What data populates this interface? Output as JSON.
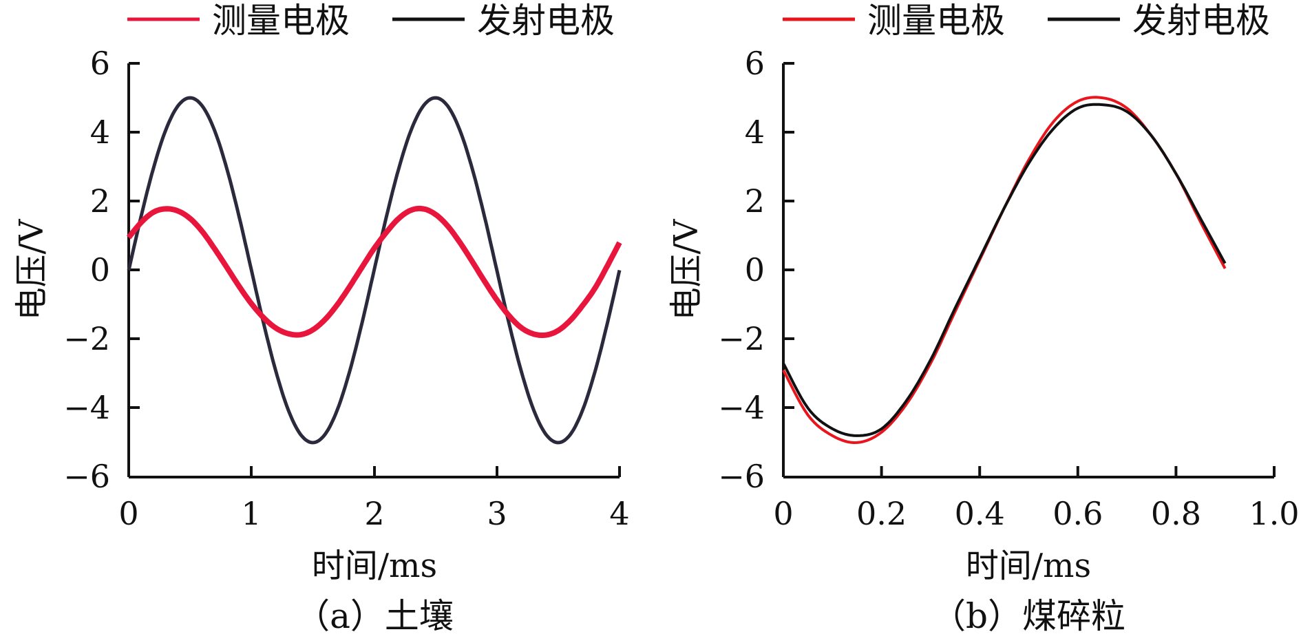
{
  "chart_data": [
    {
      "type": "line",
      "caption": "（a）土壤",
      "xlabel": "时间/ms",
      "ylabel": "电压/V",
      "xlim": [
        0,
        4
      ],
      "ylim": [
        -6,
        6
      ],
      "x_ticks": [
        "0",
        "1",
        "2",
        "3",
        "4"
      ],
      "y_ticks": [
        "6",
        "4",
        "2",
        "0",
        "−2",
        "−4",
        "−6"
      ],
      "legend": "top",
      "series": [
        {
          "name": "测量电极",
          "color": "#e8163c",
          "x": [
            0,
            0.1,
            0.2,
            0.3,
            0.4,
            0.5,
            0.6,
            0.7,
            0.8,
            0.9,
            1.0,
            1.1,
            1.2,
            1.3,
            1.4,
            1.5,
            1.6,
            1.7,
            1.8,
            1.9,
            2.0,
            2.1,
            2.2,
            2.3,
            2.4,
            2.5,
            2.6,
            2.7,
            2.8,
            2.9,
            3.0,
            3.1,
            3.2,
            3.3,
            3.4,
            3.5,
            3.6,
            3.7,
            3.8,
            3.9,
            4.0
          ],
          "y": [
            0.95,
            1.38,
            1.68,
            1.78,
            1.72,
            1.5,
            1.12,
            0.62,
            0.08,
            -0.47,
            -0.97,
            -1.38,
            -1.68,
            -1.84,
            -1.87,
            -1.73,
            -1.43,
            -1.0,
            -0.48,
            0.08,
            0.63,
            1.1,
            1.5,
            1.74,
            1.78,
            1.62,
            1.28,
            0.8,
            0.25,
            -0.32,
            -0.86,
            -1.32,
            -1.67,
            -1.85,
            -1.88,
            -1.75,
            -1.45,
            -1.02,
            -0.52,
            0.12,
            0.8
          ]
        },
        {
          "name": "发射电极",
          "color": "#2a2a3c",
          "x": [
            0,
            0.1,
            0.2,
            0.3,
            0.4,
            0.5,
            0.6,
            0.7,
            0.8,
            0.9,
            1.0,
            1.1,
            1.2,
            1.3,
            1.4,
            1.5,
            1.6,
            1.7,
            1.8,
            1.9,
            2.0,
            2.1,
            2.2,
            2.3,
            2.4,
            2.5,
            2.6,
            2.7,
            2.8,
            2.9,
            3.0,
            3.1,
            3.2,
            3.3,
            3.4,
            3.5,
            3.6,
            3.7,
            3.8,
            3.9,
            4.0
          ],
          "y": [
            0,
            1.55,
            2.94,
            4.05,
            4.76,
            5.0,
            4.76,
            4.05,
            2.94,
            1.55,
            0,
            -1.55,
            -2.94,
            -4.05,
            -4.76,
            -5.0,
            -4.76,
            -4.05,
            -2.94,
            -1.55,
            0,
            1.55,
            2.94,
            4.05,
            4.76,
            5.0,
            4.76,
            4.05,
            2.94,
            1.55,
            0,
            -1.55,
            -2.94,
            -4.05,
            -4.76,
            -5.0,
            -4.76,
            -4.05,
            -2.94,
            -1.55,
            0
          ]
        }
      ]
    },
    {
      "type": "line",
      "caption": "（b）煤碎粒",
      "xlabel": "时间/ms",
      "ylabel": "电压/V",
      "xlim": [
        0,
        1.0
      ],
      "ylim": [
        -6,
        6
      ],
      "x_ticks": [
        "0",
        "0.2",
        "0.4",
        "0.6",
        "0.8",
        "1.0"
      ],
      "y_ticks": [
        "6",
        "4",
        "2",
        "0",
        "−2",
        "−4",
        "−6"
      ],
      "legend": "top",
      "series": [
        {
          "name": "测量电极",
          "color": "#e8161c",
          "x": [
            0,
            0.05,
            0.1,
            0.15,
            0.2,
            0.25,
            0.3,
            0.35,
            0.4,
            0.45,
            0.5,
            0.55,
            0.6,
            0.65,
            0.7,
            0.75,
            0.8,
            0.85,
            0.9
          ],
          "y": [
            -2.9,
            -4.2,
            -4.8,
            -5.0,
            -4.7,
            -3.9,
            -2.7,
            -1.2,
            0.3,
            1.8,
            3.2,
            4.3,
            4.9,
            5.0,
            4.7,
            3.9,
            2.8,
            1.4,
            0.05
          ]
        },
        {
          "name": "发射电极",
          "color": "#111111",
          "x": [
            0,
            0.05,
            0.1,
            0.15,
            0.2,
            0.25,
            0.3,
            0.35,
            0.4,
            0.45,
            0.5,
            0.55,
            0.6,
            0.65,
            0.7,
            0.75,
            0.8,
            0.85,
            0.9
          ],
          "y": [
            -2.7,
            -4.0,
            -4.6,
            -4.8,
            -4.6,
            -3.8,
            -2.6,
            -1.1,
            0.35,
            1.8,
            3.1,
            4.1,
            4.7,
            4.8,
            4.6,
            3.9,
            2.8,
            1.5,
            0.2
          ]
        }
      ]
    }
  ]
}
